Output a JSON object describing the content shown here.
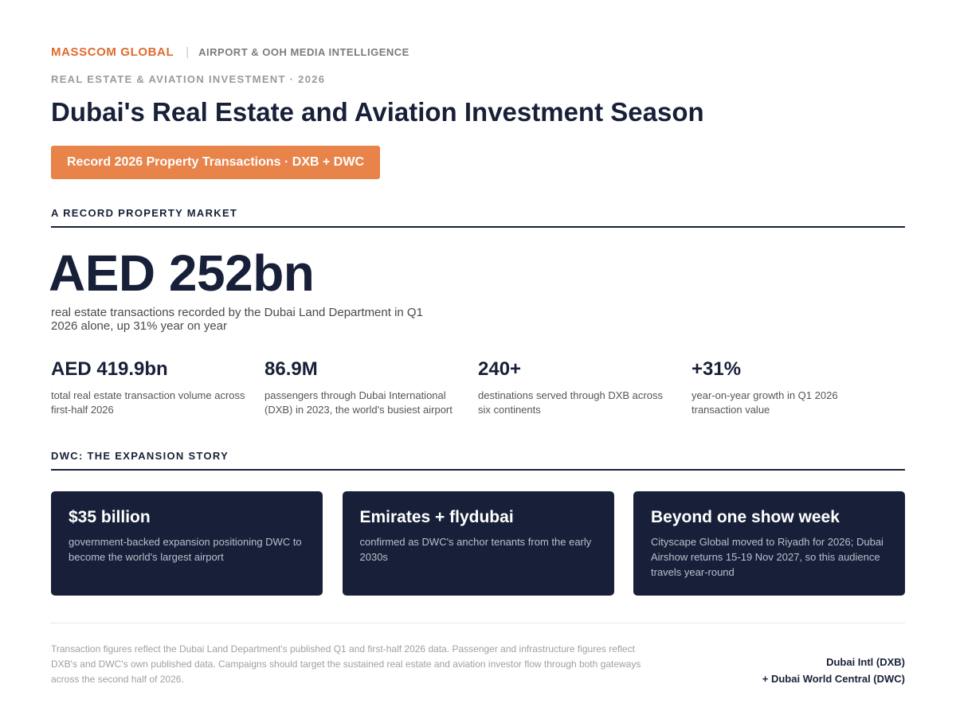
{
  "header": {
    "brand": "MASSCOM GLOBAL",
    "separator": "|",
    "tagline": "AIRPORT & OOH MEDIA INTELLIGENCE",
    "eyebrow": "REAL ESTATE & AVIATION INVESTMENT · 2026",
    "title": "Dubai's Real Estate and Aviation Investment Season",
    "pill": "Record 2026 Property Transactions · DXB + DWC"
  },
  "colors": {
    "accent": "#e06a2c",
    "pill": "#e8834a",
    "navy": "#182039"
  },
  "property": {
    "section_label": "A RECORD PROPERTY MARKET",
    "headline_value": "AED 252bn",
    "headline_desc": "real estate transactions recorded by the Dubai Land Department in Q1 2026 alone, up 31% year on year",
    "stats": [
      {
        "value": "AED 419.9bn",
        "desc": "total real estate transaction volume across first-half 2026"
      },
      {
        "value": "86.9M",
        "desc": "passengers through Dubai International (DXB) in 2023, the world's busiest airport"
      },
      {
        "value": "240+",
        "desc": "destinations served through DXB across six continents"
      },
      {
        "value": "+31%",
        "desc": "year-on-year growth in Q1 2026 transaction value"
      }
    ]
  },
  "dwc": {
    "section_label": "DWC: THE EXPANSION STORY",
    "cards": [
      {
        "title": "$35 billion",
        "desc": "government-backed expansion positioning DWC to become the world's largest airport"
      },
      {
        "title": "Emirates + flydubai",
        "desc": "confirmed as DWC's anchor tenants from the early 2030s"
      },
      {
        "title": "Beyond one show week",
        "desc": "Cityscape Global moved to Riyadh for 2026; Dubai Airshow returns 15-19 Nov 2027, so this audience travels year-round"
      }
    ]
  },
  "footer": {
    "note": "Transaction figures reflect the Dubai Land Department's published Q1 and first-half 2026 data. Passenger and infrastructure figures reflect DXB's and DWC's own published data. Campaigns should target the sustained real estate and aviation investor flow through both gateways across the second half of 2026.",
    "right_line1": "Dubai Intl (DXB)",
    "right_line2": "+ Dubai World Central (DWC)"
  }
}
